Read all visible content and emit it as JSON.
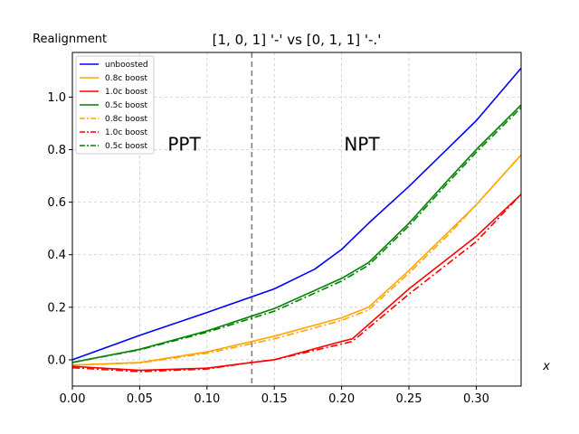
{
  "chart_data": {
    "type": "line",
    "title": "[1, 0, 1] '-' vs [0, 1, 1] '-.'",
    "ylabel": "Realignment",
    "xlabel": "x",
    "xlim": [
      0,
      0.3333
    ],
    "ylim": [
      -0.1,
      1.17
    ],
    "x_ticks": [
      0.0,
      0.05,
      0.1,
      0.15,
      0.2,
      0.25,
      0.3
    ],
    "x_tick_labels": [
      "0.00",
      "0.05",
      "0.10",
      "0.15",
      "0.20",
      "0.25",
      "0.30"
    ],
    "y_ticks": [
      0.0,
      0.2,
      0.4,
      0.6,
      0.8,
      1.0
    ],
    "y_tick_labels": [
      "0.0",
      "0.2",
      "0.4",
      "0.6",
      "0.8",
      "1.0"
    ],
    "grid": true,
    "legend_position": "top-left",
    "threshold_line": {
      "x": 0.1333,
      "style": "dashed"
    },
    "annotations": [
      {
        "text": "PPT",
        "x": 0.083,
        "y": 0.82
      },
      {
        "text": "NPT",
        "x": 0.215,
        "y": 0.82
      }
    ],
    "colors": {
      "blue": "#0000ff",
      "orange": "#ffa500",
      "red": "#ff0000",
      "green": "#008000",
      "threshold": "#808080",
      "grid": "#c8c8c8"
    },
    "series": [
      {
        "name": "unboosted",
        "color": "#0000ff",
        "style": "solid",
        "x": [
          0,
          0.05,
          0.1,
          0.15,
          0.18,
          0.2,
          0.22,
          0.25,
          0.28,
          0.3,
          0.3333
        ],
        "y": [
          0.0,
          0.093,
          0.18,
          0.27,
          0.345,
          0.42,
          0.52,
          0.66,
          0.81,
          0.91,
          1.11
        ]
      },
      {
        "name": "0.8c boost",
        "color": "#ffa500",
        "style": "solid",
        "x": [
          0,
          0.05,
          0.1,
          0.15,
          0.2,
          0.22,
          0.25,
          0.28,
          0.3,
          0.3333
        ],
        "y": [
          -0.02,
          -0.01,
          0.03,
          0.09,
          0.16,
          0.2,
          0.34,
          0.49,
          0.59,
          0.78
        ]
      },
      {
        "name": "1.0c boost",
        "color": "#ff0000",
        "style": "solid",
        "x": [
          0,
          0.05,
          0.1,
          0.133,
          0.15,
          0.2,
          0.208,
          0.25,
          0.3,
          0.3333
        ],
        "y": [
          -0.025,
          -0.04,
          -0.032,
          -0.01,
          0.0,
          0.07,
          0.08,
          0.27,
          0.47,
          0.63
        ]
      },
      {
        "name": "0.5c boost",
        "color": "#008000",
        "style": "solid",
        "x": [
          0,
          0.05,
          0.1,
          0.15,
          0.2,
          0.22,
          0.25,
          0.28,
          0.3,
          0.3333
        ],
        "y": [
          -0.01,
          0.04,
          0.11,
          0.195,
          0.31,
          0.37,
          0.52,
          0.69,
          0.8,
          0.97
        ]
      },
      {
        "name": "0.8c boost",
        "color": "#ffa500",
        "style": "dashdot",
        "x": [
          0,
          0.05,
          0.1,
          0.15,
          0.2,
          0.22,
          0.25,
          0.28,
          0.3,
          0.3333
        ],
        "y": [
          -0.02,
          -0.012,
          0.025,
          0.08,
          0.15,
          0.19,
          0.33,
          0.48,
          0.59,
          0.78
        ]
      },
      {
        "name": "1.0c boost",
        "color": "#ff0000",
        "style": "dashdot",
        "x": [
          0,
          0.05,
          0.1,
          0.133,
          0.15,
          0.2,
          0.208,
          0.25,
          0.3,
          0.3333
        ],
        "y": [
          -0.03,
          -0.045,
          -0.035,
          -0.01,
          0.0,
          0.06,
          0.07,
          0.25,
          0.45,
          0.63
        ]
      },
      {
        "name": "0.5c boost",
        "color": "#008000",
        "style": "dashdot",
        "x": [
          0,
          0.05,
          0.1,
          0.15,
          0.2,
          0.22,
          0.25,
          0.28,
          0.3,
          0.3333
        ],
        "y": [
          -0.01,
          0.038,
          0.105,
          0.185,
          0.3,
          0.36,
          0.51,
          0.68,
          0.79,
          0.96
        ]
      }
    ]
  }
}
